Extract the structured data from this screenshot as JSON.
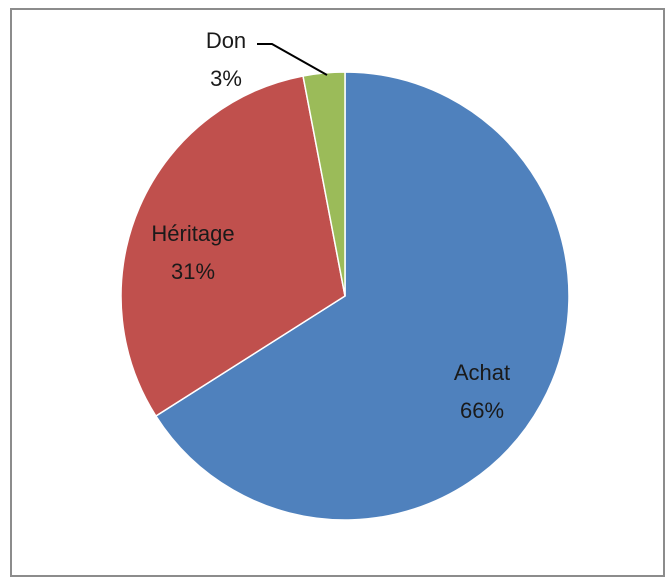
{
  "chart_data": {
    "type": "pie",
    "slices": [
      {
        "label": "Achat",
        "value": 66,
        "value_text": "66%",
        "color": "#4f81bd"
      },
      {
        "label": "Héritage",
        "value": 31,
        "value_text": "31%",
        "color": "#c0504d"
      },
      {
        "label": "Don",
        "value": 3,
        "value_text": "3%",
        "color": "#9bbb59"
      }
    ],
    "start": "12 o'clock",
    "direction": "clockwise",
    "legend": "none",
    "data_labels": "category and percentage"
  }
}
